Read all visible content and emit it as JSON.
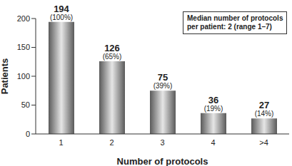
{
  "chart_data": {
    "type": "bar",
    "categories": [
      "1",
      "2",
      "3",
      "4",
      ">4"
    ],
    "values": [
      194,
      126,
      75,
      36,
      27
    ],
    "percent_labels": [
      "(100%)",
      "(65%)",
      "(39%)",
      "(19%)",
      "(14%)"
    ],
    "x_label": "Number of protocols",
    "y_label": "Patients",
    "annotation": [
      "Median number of protocols",
      "per patient: 2 (range 1–7)"
    ],
    "color": "#5a5a5a",
    "ylim": [
      0,
      200
    ],
    "yticks": [
      0,
      50,
      100,
      150,
      200
    ],
    "grid": false,
    "data_labels": true
  }
}
